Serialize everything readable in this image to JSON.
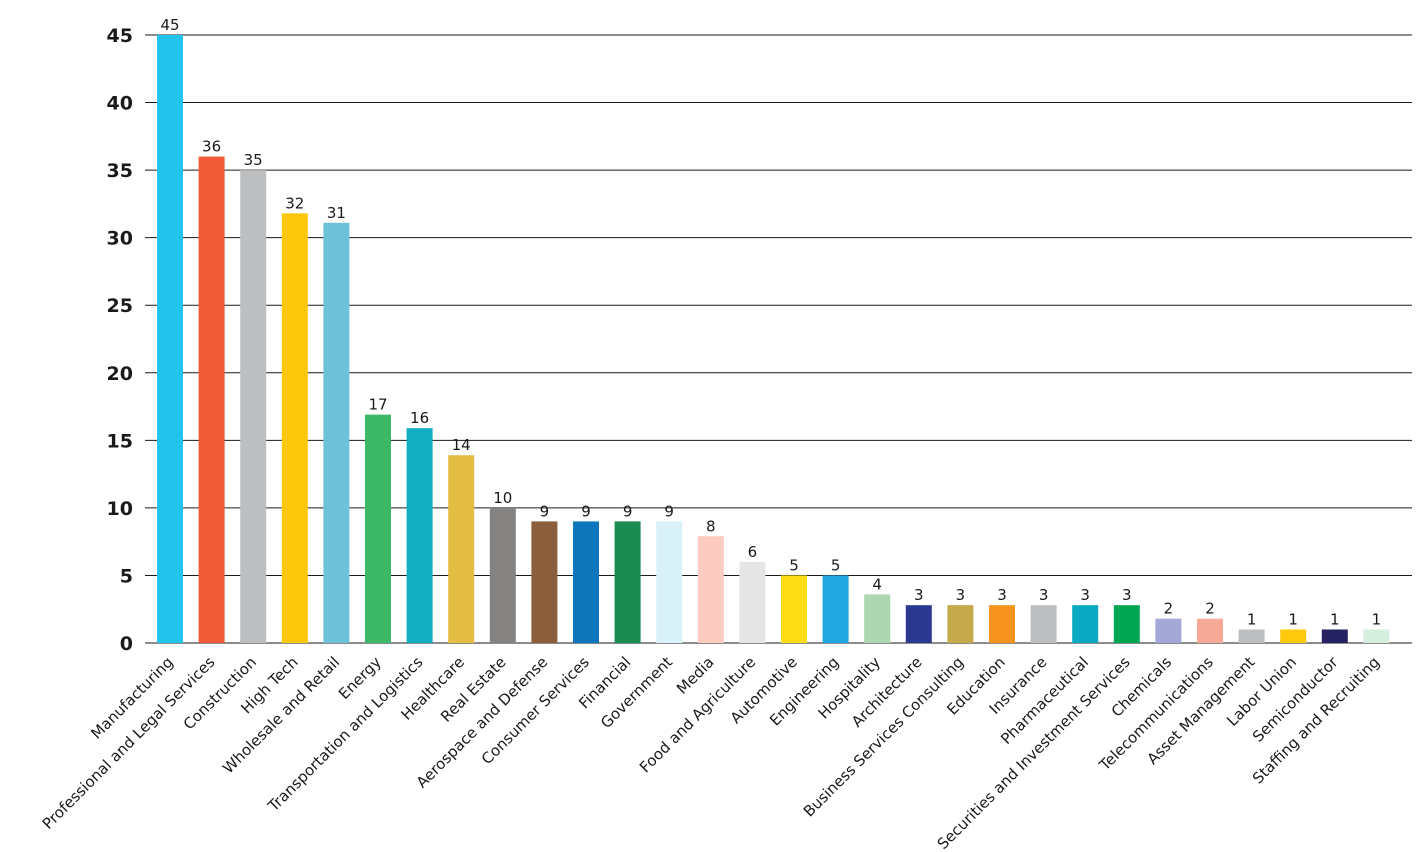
{
  "chart_data": {
    "type": "bar",
    "title": "",
    "xlabel": "",
    "ylabel": "",
    "ylim": [
      0,
      45
    ],
    "yticks": [
      0,
      5,
      10,
      15,
      20,
      25,
      30,
      35,
      40,
      45
    ],
    "grid": true,
    "legend": "none",
    "categories": [
      "Manufacturing",
      "Professional and Legal Services",
      "Construction",
      "High Tech",
      "Wholesale and Retail",
      "Energy",
      "Transportation and Logistics",
      "Healthcare",
      "Real Estate",
      "Aerospace and Defense",
      "Consumer Services",
      "Financial",
      "Government",
      "Media",
      "Food and Agriculture",
      "Automotive",
      "Engineering",
      "Hospitality",
      "Architecture",
      "Business Services Consulting",
      "Education",
      "Insurance",
      "Pharmaceutical",
      "Securities and Investment Services",
      "Chemicals",
      "Telecommunications",
      "Asset Management",
      "Labor Union",
      "Semiconductor",
      "Staffing and Recruiting"
    ],
    "values": [
      45,
      36,
      35,
      32,
      31,
      17,
      16,
      14,
      10,
      9,
      9,
      9,
      9,
      8,
      6,
      5,
      5,
      4,
      3,
      3,
      3,
      3,
      3,
      3,
      2,
      2,
      1,
      1,
      1,
      1
    ],
    "bar_values": [
      45,
      36,
      35,
      31.8,
      31.1,
      16.9,
      15.9,
      13.9,
      10,
      9,
      9,
      9,
      9,
      7.9,
      6,
      5,
      5,
      3.6,
      2.8,
      2.8,
      2.8,
      2.8,
      2.8,
      2.8,
      1.8,
      1.8,
      1,
      1,
      1,
      1
    ],
    "colors": [
      "#22c3ec",
      "#f15a36",
      "#bcbec0",
      "#fdc70c",
      "#6dc1d9",
      "#3db866",
      "#12adc1",
      "#e3bd44",
      "#858282",
      "#8b5e3c",
      "#0f76bc",
      "#1a8a50",
      "#d9f1f8",
      "#fecbc0",
      "#e5e5e5",
      "#ffdd15",
      "#21a7e0",
      "#acd7b0",
      "#2b3990",
      "#c6a94a",
      "#f7941d",
      "#bcbec0",
      "#0aaac2",
      "#00a651",
      "#a3a8d6",
      "#f7a997",
      "#bcbec0",
      "#ffc90e",
      "#262262",
      "#d6eede"
    ]
  }
}
